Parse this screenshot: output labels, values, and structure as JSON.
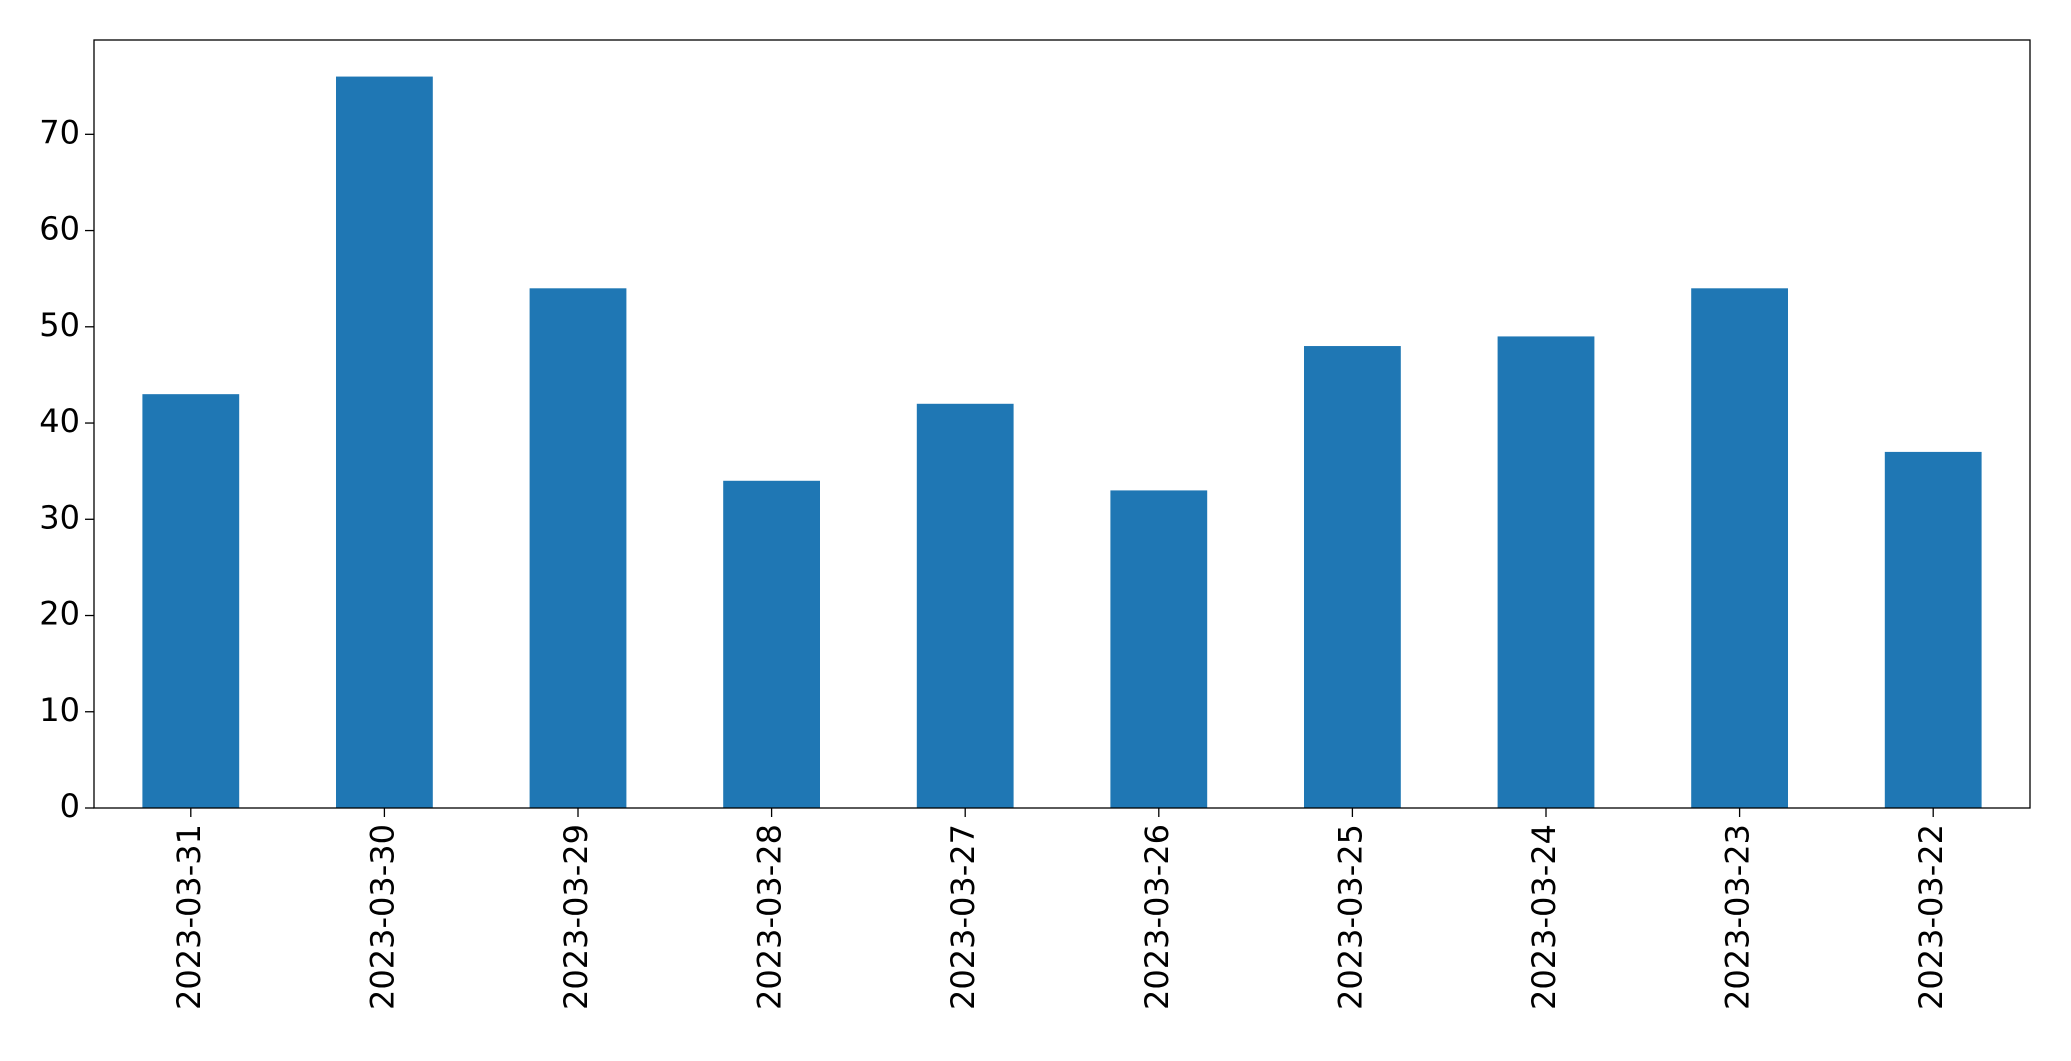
{
  "chart_data": {
    "type": "bar",
    "categories": [
      "2023-03-31",
      "2023-03-30",
      "2023-03-29",
      "2023-03-28",
      "2023-03-27",
      "2023-03-26",
      "2023-03-25",
      "2023-03-24",
      "2023-03-23",
      "2023-03-22"
    ],
    "values": [
      43,
      76,
      54,
      34,
      42,
      33,
      48,
      49,
      54,
      37
    ],
    "color": "#1f77b4",
    "ylim": [
      0,
      79.8
    ],
    "yticks": [
      0,
      10,
      20,
      30,
      40,
      50,
      60,
      70
    ],
    "grid": false
  }
}
